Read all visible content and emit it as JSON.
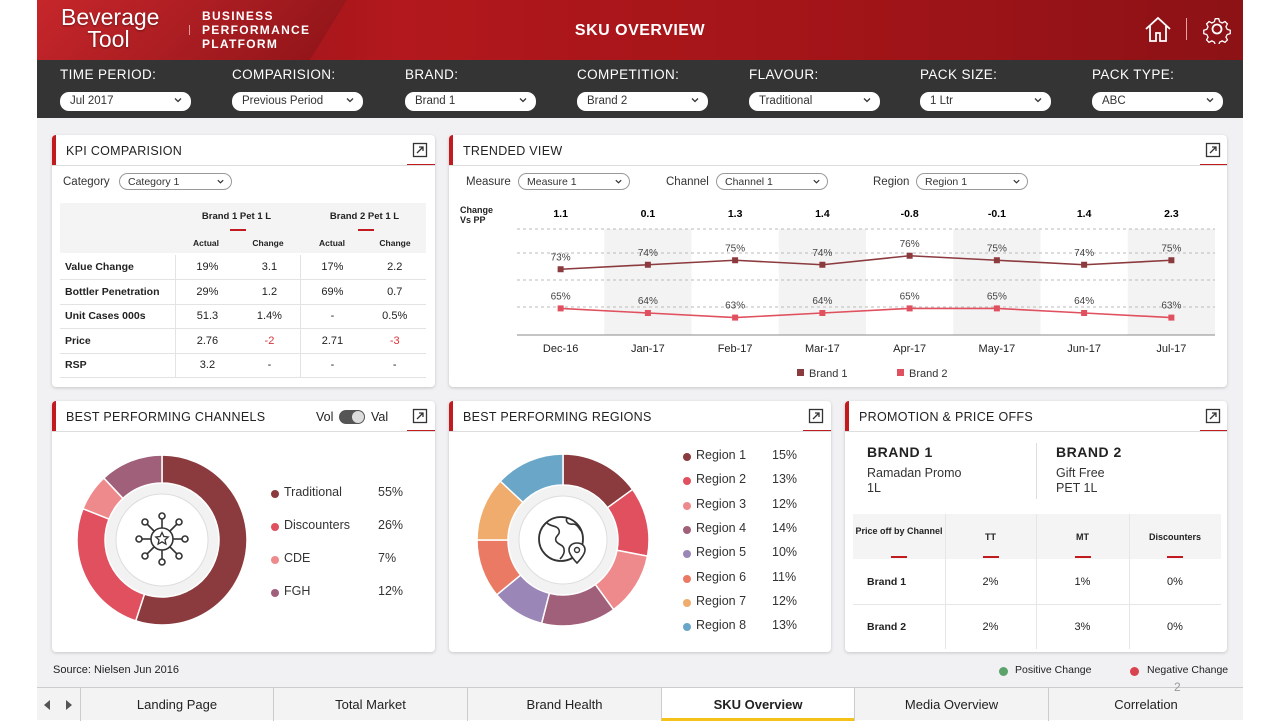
{
  "header": {
    "logo_line1": "Beverage",
    "logo_line2": "Tool",
    "logo_sub1": "BUSINESS",
    "logo_sub2": "PERFORMANCE",
    "logo_sub3": "PLATFORM",
    "title": "SKU OVERVIEW",
    "icons": [
      "home-icon",
      "gear-icon"
    ]
  },
  "filters": [
    {
      "label": "TIME PERIOD:",
      "value": "Jul 2017"
    },
    {
      "label": "COMPARISION:",
      "value": "Previous Period"
    },
    {
      "label": "BRAND:",
      "value": "Brand 1"
    },
    {
      "label": "COMPETITION:",
      "value": "Brand 2"
    },
    {
      "label": "FLAVOUR:",
      "value": "Traditional"
    },
    {
      "label": "PACK SIZE:",
      "value": "1 Ltr"
    },
    {
      "label": "PACK TYPE:",
      "value": "ABC"
    }
  ],
  "kpi": {
    "title": "KPI COMPARISION",
    "category_label": "Category",
    "category_value": "Category 1",
    "brand1": "Brand 1 Pet 1 L",
    "brand2": "Brand 2 Pet 1 L",
    "col_actual": "Actual",
    "col_change": "Change",
    "rows": [
      {
        "label": "Value Change",
        "b1a": "19%",
        "b1c": "3.1",
        "b2a": "17%",
        "b2c": "2.2",
        "b1neg": false,
        "b2neg": false
      },
      {
        "label": "Bottler Penetration",
        "b1a": "29%",
        "b1c": "1.2",
        "b2a": "69%",
        "b2c": "0.7",
        "b1neg": false,
        "b2neg": false
      },
      {
        "label": "Unit Cases 000s",
        "b1a": "51.3",
        "b1c": "1.4%",
        "b2a": "-",
        "b2c": "0.5%",
        "b1neg": false,
        "b2neg": false
      },
      {
        "label": "Price",
        "b1a": "2.76",
        "b1c": "-2",
        "b2a": "2.71",
        "b2c": "-3",
        "b1neg": true,
        "b2neg": true
      },
      {
        "label": "RSP",
        "b1a": "3.2",
        "b1c": "-",
        "b2a": "-",
        "b2c": "-",
        "b1neg": false,
        "b2neg": false
      }
    ]
  },
  "trend": {
    "title": "TRENDED VIEW",
    "measure_label": "Measure",
    "measure_value": "Measure 1",
    "channel_label": "Channel",
    "channel_value": "Channel 1",
    "region_label": "Region",
    "region_value": "Region 1",
    "change_label_1": "Change",
    "change_label_2": "Vs PP"
  },
  "chart_data": {
    "type": "line",
    "categories": [
      "Dec-16",
      "Jan-17",
      "Feb-17",
      "Mar-17",
      "Apr-17",
      "May-17",
      "Jun-17",
      "Jul-17"
    ],
    "change_vs_pp": [
      "1.1",
      "0.1",
      "1.3",
      "1.4",
      "-0.8",
      "-0.1",
      "1.4",
      "2.3"
    ],
    "series": [
      {
        "name": "Brand 1",
        "values": [
          73,
          74,
          75,
          74,
          76,
          75,
          74,
          75
        ],
        "labels": [
          "73%",
          "74%",
          "75%",
          "74%",
          "76%",
          "75%",
          "74%",
          "75%"
        ],
        "color": "#8b3a3e"
      },
      {
        "name": "Brand 2",
        "values": [
          65,
          64,
          63,
          64,
          65,
          65,
          64,
          63
        ],
        "labels": [
          "65%",
          "64%",
          "63%",
          "64%",
          "65%",
          "65%",
          "64%",
          "63%"
        ],
        "color": "#e0505f"
      }
    ]
  },
  "channels": {
    "title": "BEST PERFORMING CHANNELS",
    "toggle_left": "Vol",
    "toggle_right": "Val",
    "center_icon": "network-star-icon",
    "items": [
      {
        "name": "Traditional",
        "value": "55%",
        "share": 55,
        "color": "#8b3a3e"
      },
      {
        "name": "Discounters",
        "value": "26%",
        "share": 26,
        "color": "#e0505f"
      },
      {
        "name": "CDE",
        "value": "7%",
        "share": 7,
        "color": "#ee8a8c"
      },
      {
        "name": "FGH",
        "value": "12%",
        "share": 12,
        "color": "#a0607a"
      }
    ]
  },
  "regions": {
    "title": "BEST PERFORMING REGIONS",
    "center_icon": "globe-pin-icon",
    "items": [
      {
        "name": "Region 1",
        "value": "15%",
        "share": 15,
        "color": "#8b3a3e"
      },
      {
        "name": "Region 2",
        "value": "13%",
        "share": 13,
        "color": "#e0505f"
      },
      {
        "name": "Region 3",
        "value": "12%",
        "share": 12,
        "color": "#ee8a8c"
      },
      {
        "name": "Region 4",
        "value": "14%",
        "share": 14,
        "color": "#a0607a"
      },
      {
        "name": "Region 5",
        "value": "10%",
        "share": 10,
        "color": "#9b86b8"
      },
      {
        "name": "Region 6",
        "value": "11%",
        "share": 11,
        "color": "#ea7a64"
      },
      {
        "name": "Region 7",
        "value": "12%",
        "share": 12,
        "color": "#f0ac6c"
      },
      {
        "name": "Region 8",
        "value": "13%",
        "share": 13,
        "color": "#6aa6c8"
      }
    ]
  },
  "promo": {
    "title": "PROMOTION & PRICE OFFS",
    "brand1": "BRAND 1",
    "brand1_l1": "Ramadan Promo",
    "brand1_l2": "1L",
    "brand2": "BRAND 2",
    "brand2_l1": "Gift Free",
    "brand2_l2": "PET 1L",
    "head": [
      "Price off by Channel",
      "TT",
      "MT",
      "Discounters"
    ],
    "rows": [
      {
        "label": "Brand 1",
        "tt": "2%",
        "mt": "1%",
        "disc": "0%"
      },
      {
        "label": "Brand 2",
        "tt": "2%",
        "mt": "3%",
        "disc": "0%"
      }
    ]
  },
  "footer": {
    "source": "Source: Nielsen Jun 2016",
    "positive": "Positive Change",
    "negative": "Negative Change",
    "positive_color": "#5ba36a",
    "negative_color": "#d8434f",
    "page_number": "2"
  },
  "tabs": [
    "Landing Page",
    "Total Market",
    "Brand Health",
    "SKU Overview",
    "Media Overview",
    "Correlation"
  ],
  "active_tab": "SKU Overview"
}
